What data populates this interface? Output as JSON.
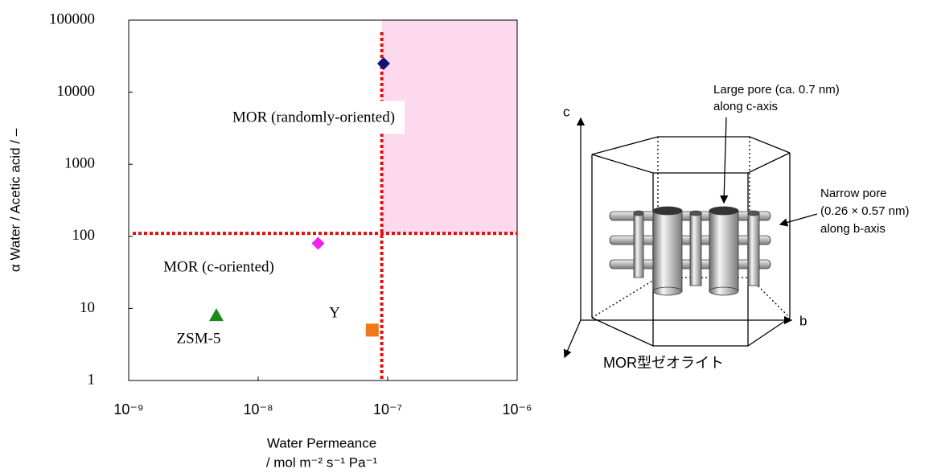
{
  "chart_data": {
    "type": "scatter",
    "xlabel": [
      "Water Permeance",
      "/ mol m⁻² s⁻¹ Pa⁻¹"
    ],
    "ylabel": "α Water / Acetic acid / –",
    "xscale": "log",
    "yscale": "log",
    "xlim": [
      1e-09,
      1e-06
    ],
    "ylim": [
      1,
      100000
    ],
    "xticks": [
      {
        "value": 1e-09,
        "label": "10⁻⁹"
      },
      {
        "value": 1e-08,
        "label": "10⁻⁸"
      },
      {
        "value": 1e-07,
        "label": "10⁻⁷"
      },
      {
        "value": 1e-06,
        "label": "10⁻⁶"
      }
    ],
    "yticks": [
      1,
      10,
      100,
      1000,
      10000,
      100000
    ],
    "legend": false,
    "series": [
      {
        "name": "MOR (randomly-oriented)",
        "marker": "diamond",
        "color": "#10127a",
        "x": [
          9.3e-08
        ],
        "y": [
          25000
        ]
      },
      {
        "name": "MOR (c-oriented)",
        "marker": "diamond",
        "color": "#f020f0",
        "x": [
          2.9e-08
        ],
        "y": [
          80
        ]
      },
      {
        "name": "ZSM-5",
        "marker": "triangle",
        "color": "#1a8a1a",
        "x": [
          4.75e-09
        ],
        "y": [
          8
        ]
      },
      {
        "name": "Y",
        "marker": "square",
        "color": "#f07818",
        "x": [
          7.6e-08
        ],
        "y": [
          5
        ]
      }
    ],
    "reference_lines": {
      "x": 9e-08,
      "y": 110,
      "color": "#e01010"
    },
    "region": {
      "xlim": [
        9e-08,
        1e-06
      ],
      "ylim": [
        110,
        100000
      ],
      "color": "#fcd9ec"
    }
  },
  "diagram": {
    "axis_c": "c",
    "axis_b": "b",
    "large_pore": [
      "Large pore (ca. 0.7 nm)",
      "along c-axis"
    ],
    "narrow_pore": [
      "Narrow pore",
      "(0.26 × 0.57 nm)",
      "along b-axis"
    ],
    "caption": "MOR型ゼオライト"
  }
}
